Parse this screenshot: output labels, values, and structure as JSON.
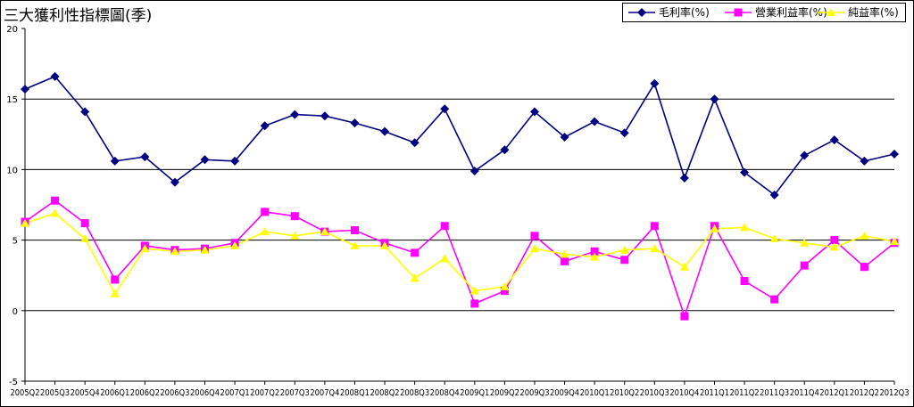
{
  "chart_data": {
    "type": "line",
    "title": "三大獲利性指標圖(季)",
    "categories": [
      "2005Q2",
      "2005Q3",
      "2005Q4",
      "2006Q1",
      "2006Q2",
      "2006Q3",
      "2006Q4",
      "2007Q1",
      "2007Q2",
      "2007Q3",
      "2007Q4",
      "2008Q1",
      "2008Q2",
      "2008Q3",
      "2008Q4",
      "2009Q1",
      "2009Q2",
      "2009Q3",
      "2009Q4",
      "2010Q1",
      "2010Q2",
      "2010Q3",
      "2010Q4",
      "2011Q1",
      "2011Q2",
      "2011Q3",
      "2011Q4",
      "2012Q1",
      "2012Q2",
      "2012Q3"
    ],
    "ylim": [
      -5,
      20
    ],
    "yticks": [
      -5,
      0,
      5,
      10,
      15,
      20
    ],
    "grid": true,
    "legend_position": "top-right",
    "series": [
      {
        "name": "毛利率(%)",
        "color": "#000080",
        "marker": "diamond",
        "values": [
          15.7,
          16.6,
          14.1,
          10.6,
          10.9,
          9.1,
          10.7,
          10.6,
          13.1,
          13.9,
          13.8,
          13.3,
          12.7,
          11.9,
          14.3,
          9.9,
          11.4,
          14.1,
          12.3,
          13.4,
          12.6,
          16.1,
          9.4,
          15.0,
          9.8,
          8.2,
          11.0,
          12.1,
          10.6,
          11.1
        ]
      },
      {
        "name": "營業利益率(%)",
        "color": "#ff00ff",
        "marker": "square",
        "values": [
          6.3,
          7.8,
          6.2,
          2.2,
          4.6,
          4.3,
          4.4,
          4.8,
          7.0,
          6.7,
          5.6,
          5.7,
          4.8,
          4.1,
          6.0,
          0.5,
          1.4,
          5.3,
          3.5,
          4.2,
          3.6,
          6.0,
          -0.4,
          6.0,
          2.1,
          0.8,
          3.2,
          5.0,
          3.1,
          4.8
        ]
      },
      {
        "name": "純益率(%)",
        "color": "#ffff00",
        "marker": "triangle",
        "values": [
          6.2,
          6.9,
          5.1,
          1.2,
          4.4,
          4.2,
          4.3,
          4.6,
          5.6,
          5.3,
          5.6,
          4.6,
          4.6,
          2.3,
          3.7,
          1.4,
          1.7,
          4.4,
          4.0,
          3.8,
          4.3,
          4.4,
          3.1,
          5.8,
          5.9,
          5.1,
          4.8,
          4.5,
          5.3,
          4.9
        ]
      }
    ]
  }
}
